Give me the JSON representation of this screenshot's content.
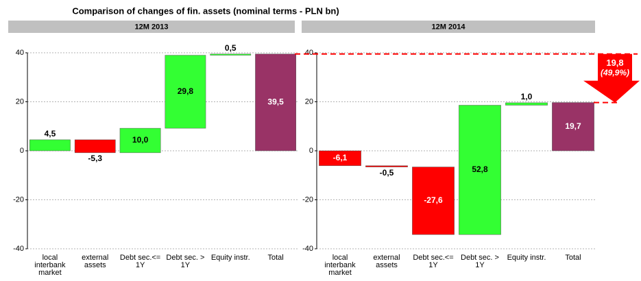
{
  "title": "Comparison of changes of fin. assets (nominal terms - PLN bn)",
  "chart_data": [
    {
      "type": "waterfall",
      "title": "12M 2013",
      "categories": [
        "local interbank market",
        "external assets",
        "Debt sec.<= 1Y",
        "Debt sec. > 1Y",
        "Equity instr.",
        "Total"
      ],
      "values": [
        4.5,
        -5.3,
        10.0,
        29.8,
        0.5,
        39.5
      ],
      "value_labels": [
        "4,5",
        "-5,3",
        "10,0",
        "29,8",
        "0,5",
        "39,5"
      ],
      "measure": [
        "relative",
        "relative",
        "relative",
        "relative",
        "relative",
        "total"
      ],
      "colors": [
        "#33ff33",
        "#ff0000",
        "#33ff33",
        "#33ff33",
        "#33ff33",
        "#993366"
      ],
      "ylim": [
        -40,
        40
      ],
      "yticks": [
        -40,
        -20,
        0,
        20,
        40
      ],
      "grid": true
    },
    {
      "type": "waterfall",
      "title": "12M 2014",
      "categories": [
        "local interbank market",
        "external assets",
        "Debt sec.<= 1Y",
        "Debt sec. > 1Y",
        "Equity instr.",
        "Total"
      ],
      "values": [
        -6.1,
        -0.5,
        -27.6,
        52.8,
        1.0,
        19.7
      ],
      "value_labels": [
        "-6,1",
        "-0,5",
        "-27,6",
        "52,8",
        "1,0",
        "19,7"
      ],
      "measure": [
        "relative",
        "relative",
        "relative",
        "relative",
        "relative",
        "total"
      ],
      "colors": [
        "#ff0000",
        "#ff0000",
        "#ff0000",
        "#33ff33",
        "#33ff33",
        "#993366"
      ],
      "ylim": [
        -40,
        40
      ],
      "yticks": [
        -40,
        -20,
        0,
        20,
        40
      ],
      "grid": true,
      "annotation": {
        "label": "19,8",
        "value": 19.8,
        "percent_label": "(49,9%)",
        "percent": 49.9,
        "color": "#ff0000"
      }
    }
  ]
}
